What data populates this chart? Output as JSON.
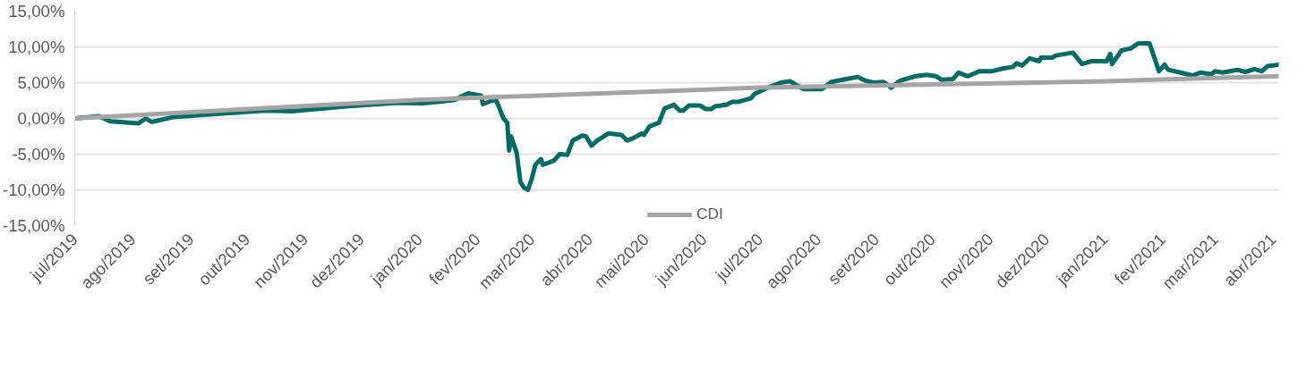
{
  "chart_data": {
    "type": "line",
    "xlim": [
      "2019-07-01",
      "2021-04-04"
    ],
    "xticks": [
      {
        "value": "2019-07-01",
        "label": "jul/2019"
      },
      {
        "value": "2019-08-01",
        "label": "ago/2019"
      },
      {
        "value": "2019-09-01",
        "label": "set/2019"
      },
      {
        "value": "2019-10-01",
        "label": "out/2019"
      },
      {
        "value": "2019-11-01",
        "label": "nov/2019"
      },
      {
        "value": "2019-12-01",
        "label": "dez/2019"
      },
      {
        "value": "2020-01-01",
        "label": "jan/2020"
      },
      {
        "value": "2020-02-01",
        "label": "fev/2020"
      },
      {
        "value": "2020-03-01",
        "label": "mar/2020"
      },
      {
        "value": "2020-04-01",
        "label": "abr/2020"
      },
      {
        "value": "2020-05-01",
        "label": "mai/2020"
      },
      {
        "value": "2020-06-01",
        "label": "jun/2020"
      },
      {
        "value": "2020-07-01",
        "label": "jul/2020"
      },
      {
        "value": "2020-08-01",
        "label": "ago/2020"
      },
      {
        "value": "2020-09-01",
        "label": "set/2020"
      },
      {
        "value": "2020-10-01",
        "label": "out/2020"
      },
      {
        "value": "2020-11-01",
        "label": "nov/2020"
      },
      {
        "value": "2020-12-01",
        "label": "dez/2020"
      },
      {
        "value": "2021-01-01",
        "label": "jan/2021"
      },
      {
        "value": "2021-02-01",
        "label": "fev/2021"
      },
      {
        "value": "2021-03-01",
        "label": "mar/2021"
      },
      {
        "value": "2021-04-01",
        "label": "abr/2021"
      }
    ],
    "ylim": [
      -15,
      15
    ],
    "yticks": [
      {
        "value": -15,
        "label": "-15,00%"
      },
      {
        "value": -10,
        "label": "-10,00%"
      },
      {
        "value": -5,
        "label": "-5,00%"
      },
      {
        "value": 0,
        "label": "0,00%"
      },
      {
        "value": 5,
        "label": "5,00%"
      },
      {
        "value": 10,
        "label": "10,00%"
      },
      {
        "value": 15,
        "label": "15,00%"
      }
    ],
    "grid": "y",
    "legend": "bottom",
    "line_style": "solid",
    "series": [
      {
        "color": "#006b63",
        "x": [
          "2019-07-01",
          "2019-07-14",
          "2019-07-20",
          "2019-08-04",
          "2019-08-08",
          "2019-08-11",
          "2019-08-23",
          "2019-09-13",
          "2019-10-11",
          "2019-10-25",
          "2019-11-23",
          "2019-12-21",
          "2020-01-02",
          "2020-01-11",
          "2020-01-20",
          "2020-01-27",
          "2020-02-03",
          "2020-02-04",
          "2020-02-09",
          "2020-02-11",
          "2020-02-15",
          "2020-02-17",
          "2020-02-18",
          "2020-02-19",
          "2020-02-22",
          "2020-02-24",
          "2020-02-26",
          "2020-02-28",
          "2020-03-01",
          "2020-03-03",
          "2020-03-06",
          "2020-03-07",
          "2020-03-13",
          "2020-03-16",
          "2020-03-20",
          "2020-03-23",
          "2020-03-28",
          "2020-03-30",
          "2020-04-02",
          "2020-04-05",
          "2020-04-11",
          "2020-04-18",
          "2020-04-21",
          "2020-04-24",
          "2020-04-29",
          "2020-04-30",
          "2020-05-03",
          "2020-05-08",
          "2020-05-11",
          "2020-05-16",
          "2020-05-19",
          "2020-05-21",
          "2020-05-24",
          "2020-05-30",
          "2020-06-02",
          "2020-06-05",
          "2020-06-07",
          "2020-06-13",
          "2020-06-16",
          "2020-06-19",
          "2020-06-26",
          "2020-06-28",
          "2020-07-06",
          "2020-07-12",
          "2020-07-17",
          "2020-07-24",
          "2020-08-03",
          "2020-08-08",
          "2020-08-16",
          "2020-08-22",
          "2020-08-26",
          "2020-08-31",
          "2020-09-05",
          "2020-09-09",
          "2020-09-14",
          "2020-09-22",
          "2020-09-28",
          "2020-10-03",
          "2020-10-06",
          "2020-10-12",
          "2020-10-15",
          "2020-10-20",
          "2020-10-26",
          "2020-11-02",
          "2020-11-08",
          "2020-11-13",
          "2020-11-15",
          "2020-11-18",
          "2020-11-22",
          "2020-11-27",
          "2020-11-28",
          "2020-12-04",
          "2020-12-06",
          "2020-12-15",
          "2020-12-20",
          "2020-12-25",
          "2021-01-02",
          "2021-01-04",
          "2021-01-05",
          "2021-01-10",
          "2021-01-15",
          "2021-01-19",
          "2021-01-25",
          "2021-01-30",
          "2021-02-02",
          "2021-02-04",
          "2021-02-09",
          "2021-02-17",
          "2021-02-21",
          "2021-02-27",
          "2021-03-01",
          "2021-03-05",
          "2021-03-13",
          "2021-03-17",
          "2021-03-22",
          "2021-03-26",
          "2021-03-29",
          "2021-04-04"
        ],
        "values": [
          0,
          0.3,
          -0.4,
          -0.7,
          0,
          -0.5,
          0.2,
          0.6,
          1.1,
          1.0,
          1.7,
          2.2,
          2.1,
          2.3,
          2.6,
          3.5,
          3.2,
          2.0,
          2.5,
          2.6,
          0,
          -0.6,
          -4.5,
          -2.5,
          -4.8,
          -8.9,
          -9.7,
          -10.0,
          -8.5,
          -6.5,
          -5.7,
          -6.5,
          -5.9,
          -5.0,
          -5.1,
          -3.1,
          -2.4,
          -2.5,
          -3.8,
          -3.1,
          -2.1,
          -2.3,
          -3.1,
          -2.8,
          -2.1,
          -2.3,
          -1.1,
          -0.6,
          1.4,
          1.9,
          1.1,
          1.1,
          1.8,
          1.8,
          1.3,
          1.3,
          1.7,
          1.9,
          2.3,
          2.3,
          2.8,
          3.4,
          4.4,
          5.0,
          5.2,
          4.1,
          4.1,
          5.1,
          5.5,
          5.8,
          5.3,
          5.0,
          5.1,
          4.3,
          5.3,
          5.9,
          6.1,
          5.9,
          5.4,
          5.5,
          6.4,
          5.9,
          6.6,
          6.6,
          7.0,
          7.2,
          7.7,
          7.4,
          8.4,
          8.0,
          8.5,
          8.5,
          8.8,
          9.2,
          7.6,
          8.0,
          8.0,
          9.0,
          7.6,
          9.5,
          9.8,
          10.5,
          10.5,
          6.6,
          7.5,
          6.8,
          6.5,
          6.0,
          6.4,
          6.2,
          6.6,
          6.4,
          6.8,
          6.5,
          6.9,
          6.6,
          7.3,
          7.5
        ]
      },
      {
        "name": "CDI",
        "color": "#a5a5a5",
        "x": [
          "2019-07-01",
          "2020-01-01",
          "2020-07-01",
          "2021-01-01",
          "2021-04-04"
        ],
        "values": [
          0,
          2.6,
          4.3,
          5.2,
          5.9
        ]
      }
    ]
  }
}
